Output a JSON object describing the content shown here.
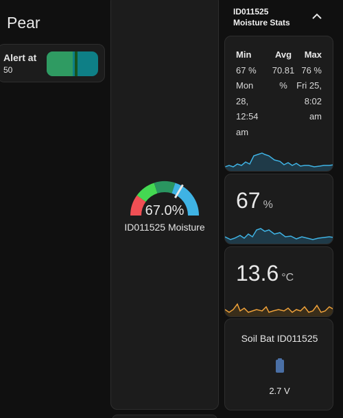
{
  "page": {
    "title": "Pear"
  },
  "alert": {
    "label": "Alert at",
    "value": "50",
    "fill_percent": 50,
    "marker_percent": 57
  },
  "gauge": {
    "value_text": "67.0%",
    "value": 67.0,
    "min": 0,
    "max": 100,
    "name": "ID011525 Moisture",
    "segments": [
      {
        "from": 0,
        "to": 20,
        "color": "#f04f54"
      },
      {
        "from": 20,
        "to": 40,
        "color": "#44d852"
      },
      {
        "from": 40,
        "to": 60,
        "color": "#2a9560"
      },
      {
        "from": 60,
        "to": 100,
        "color": "#3fb3e4"
      }
    ]
  },
  "stats_header": {
    "id": "ID011525",
    "subtitle": "Moisture Stats",
    "chevron": "chevron-up-icon"
  },
  "stats": {
    "min": {
      "label": "Min",
      "value": "67 %",
      "time": [
        "Mon",
        "28,",
        "12:54",
        "am"
      ]
    },
    "avg": {
      "label": "Avg",
      "value": [
        "70.81",
        "%"
      ]
    },
    "max": {
      "label": "Max",
      "value": "76 %",
      "time": [
        "Fri 25,",
        "8:02",
        "am"
      ]
    }
  },
  "moisture_card": {
    "value": "67",
    "unit": "%"
  },
  "temperature_card": {
    "value": "13.6",
    "unit": "°C"
  },
  "battery_card": {
    "title": "Soil Bat ID011525",
    "icon": "battery-icon",
    "value": "2.7 V"
  },
  "colors": {
    "moisture_line": "#3fb3e4",
    "temperature_line": "#f0a23a",
    "battery_icon": "#4a6fa5"
  }
}
